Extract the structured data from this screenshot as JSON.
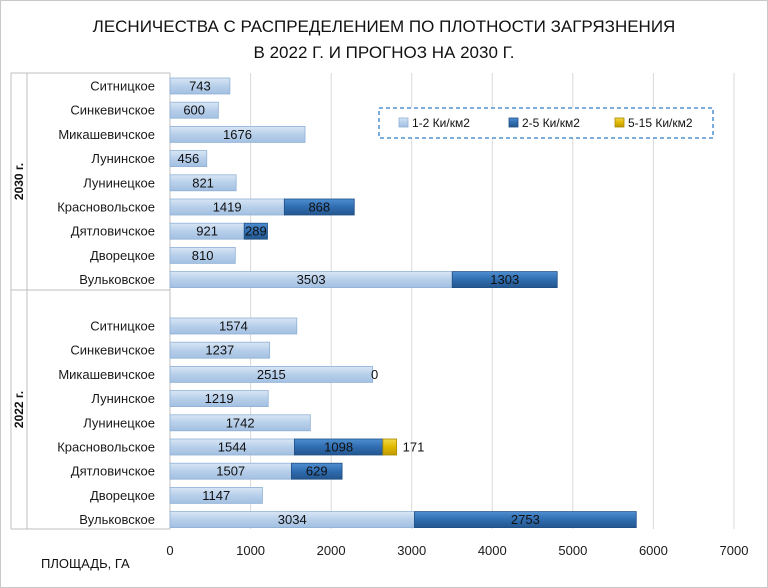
{
  "chart_data": {
    "type": "bar",
    "orientation": "horizontal",
    "stacked": true,
    "title_lines": [
      "ЛЕСНИЧЕСТВА С РАСПРЕДЕЛЕНИЕМ ПО ПЛОТНОСТИ ЗАГРЯЗНЕНИЯ",
      "В 2022 Г. И ПРОГНОЗ НА 2030 Г."
    ],
    "xlabel": "ПЛОЩАДЬ, ГА",
    "xlim": [
      0,
      7000
    ],
    "xticks": [
      0,
      1000,
      2000,
      3000,
      4000,
      5000,
      6000,
      7000
    ],
    "grid": "vertical",
    "legend_position": "top-right",
    "series_styles": [
      {
        "name": "1-2 Ки/км2",
        "color": "#b7cfea",
        "edge": "#8fb0d6"
      },
      {
        "name": "2-5 Ки/км2",
        "color": "#2f6db0",
        "edge": "#1f4f86"
      },
      {
        "name": "5-15 Ки/км2",
        "color": "#e0b800",
        "edge": "#a88a00"
      }
    ],
    "groups": [
      {
        "label": "2030 г.",
        "categories": [
          {
            "name": "Ситницкое",
            "values": [
              743,
              null,
              null
            ],
            "labels": [
              "743",
              "",
              ""
            ]
          },
          {
            "name": "Синкевичское",
            "values": [
              600,
              null,
              null
            ],
            "labels": [
              "600",
              "",
              ""
            ]
          },
          {
            "name": "Микашевичское",
            "values": [
              1676,
              null,
              null
            ],
            "labels": [
              "1676",
              "",
              ""
            ]
          },
          {
            "name": "Лунинское",
            "values": [
              456,
              null,
              null
            ],
            "labels": [
              "456",
              "",
              ""
            ]
          },
          {
            "name": "Лунинецкое",
            "values": [
              821,
              null,
              null
            ],
            "labels": [
              "821",
              "",
              ""
            ]
          },
          {
            "name": "Красновольское",
            "values": [
              1419,
              868,
              null
            ],
            "labels": [
              "1419",
              "868",
              ""
            ]
          },
          {
            "name": "Дятловичское",
            "values": [
              921,
              289,
              null
            ],
            "labels": [
              "921",
              "289",
              ""
            ]
          },
          {
            "name": "Дворецкое",
            "values": [
              810,
              null,
              null
            ],
            "labels": [
              "810",
              "",
              ""
            ]
          },
          {
            "name": "Вульковское",
            "values": [
              3503,
              1303,
              null
            ],
            "labels": [
              "3503",
              "1303",
              ""
            ]
          }
        ]
      },
      {
        "label": "2022 г.",
        "categories": [
          {
            "name": "Ситницкое",
            "values": [
              1574,
              null,
              null
            ],
            "labels": [
              "1574",
              "",
              ""
            ]
          },
          {
            "name": "Синкевичское",
            "values": [
              1237,
              null,
              null
            ],
            "labels": [
              "1237",
              "",
              ""
            ]
          },
          {
            "name": "Микашевичское",
            "values": [
              2515,
              0,
              null
            ],
            "labels": [
              "2515",
              "0",
              ""
            ]
          },
          {
            "name": "Лунинское",
            "values": [
              1219,
              null,
              null
            ],
            "labels": [
              "1219",
              "",
              ""
            ]
          },
          {
            "name": "Лунинецкое",
            "values": [
              1742,
              null,
              null
            ],
            "labels": [
              "1742",
              "",
              ""
            ]
          },
          {
            "name": "Красновольское",
            "values": [
              1544,
              1098,
              171
            ],
            "labels": [
              "1544",
              "1098",
              "171"
            ]
          },
          {
            "name": "Дятловичское",
            "values": [
              1507,
              629,
              null
            ],
            "labels": [
              "1507",
              "629",
              ""
            ]
          },
          {
            "name": "Дворецкое",
            "values": [
              1147,
              null,
              null
            ],
            "labels": [
              "1147",
              "",
              ""
            ]
          },
          {
            "name": "Вульковское",
            "values": [
              3034,
              2753,
              null
            ],
            "labels": [
              "3034",
              "2753",
              ""
            ]
          }
        ]
      }
    ]
  }
}
